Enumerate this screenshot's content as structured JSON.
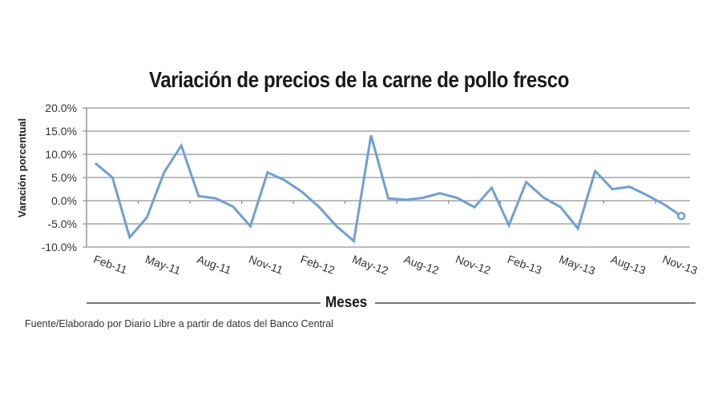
{
  "header": {
    "title": "Variación de precios de la carne de pollo fresco"
  },
  "axes": {
    "y_label": "Varación porcentual",
    "x_label": "Meses"
  },
  "footer": {
    "source": "Fuente/Elaborado por Diario Libre a partir de datos del Banco Central"
  },
  "colors": {
    "line": "#6f9fd4",
    "grid": "#a6a6a6",
    "axis_title_rule": "#777777",
    "text": "#222222"
  },
  "chart_data": {
    "type": "line",
    "title": "Variación de precios de la carne de pollo fresco",
    "xlabel": "Meses",
    "ylabel": "Varación porcentual",
    "ylim": [
      -10,
      20
    ],
    "yticks": [
      -10,
      -5,
      0,
      5,
      10,
      15,
      20
    ],
    "ytick_labels": [
      "-10.0%",
      "-5.0%",
      "0.0%",
      "5.0%",
      "10.0%",
      "15.0%",
      "20.0%"
    ],
    "grid": true,
    "legend": null,
    "x_tick_labels": [
      "Feb-11",
      "May-11",
      "Aug-11",
      "Nov-11",
      "Feb-12",
      "May-12",
      "Aug-12",
      "Nov-12",
      "Feb-13",
      "May-13",
      "Aug-13",
      "Nov-13"
    ],
    "x_tick_label_interval": 3,
    "categories": [
      "Feb-11",
      "Mar-11",
      "Apr-11",
      "May-11",
      "Jun-11",
      "Jul-11",
      "Aug-11",
      "Sep-11",
      "Oct-11",
      "Nov-11",
      "Dec-11",
      "Jan-12",
      "Feb-12",
      "Mar-12",
      "Apr-12",
      "May-12",
      "Jun-12",
      "Jul-12",
      "Aug-12",
      "Sep-12",
      "Oct-12",
      "Nov-12",
      "Dec-12",
      "Jan-13",
      "Feb-13",
      "Mar-13",
      "Apr-13",
      "May-13",
      "Jun-13",
      "Jul-13",
      "Aug-13",
      "Sep-13",
      "Oct-13",
      "Nov-13",
      "Dec-13"
    ],
    "series": [
      {
        "name": "Variación porcentual",
        "values": [
          8.1,
          5.0,
          -7.9,
          -3.6,
          6.1,
          11.9,
          1.0,
          0.5,
          -1.3,
          -5.5,
          6.1,
          4.4,
          1.9,
          -1.4,
          -5.5,
          -8.7,
          14.1,
          0.5,
          0.2,
          0.6,
          1.6,
          0.6,
          -1.4,
          2.8,
          -5.3,
          4.0,
          0.7,
          -1.4,
          -6.0,
          6.4,
          2.5,
          3.0,
          1.2,
          -0.8,
          -3.3
        ],
        "last_point_marker": "hollow-circle"
      }
    ],
    "annotations": []
  }
}
